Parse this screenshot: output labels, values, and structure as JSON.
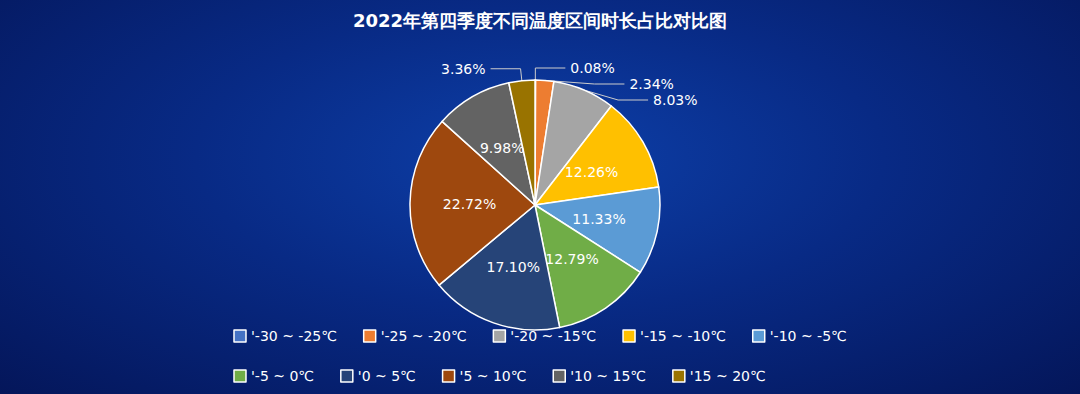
{
  "chart_data": {
    "type": "pie",
    "title": "2022年第四季度不同温度区间时长占比对比图",
    "categories": [
      "'-30 ~ -25℃",
      "'-25 ~ -20℃",
      "'-20 ~ -15℃",
      "'-15 ~ -10℃",
      "'-10 ~ -5℃",
      "'-5 ~ 0℃",
      "'0 ~ 5℃",
      "'5 ~ 10℃",
      "'10 ~ 15℃",
      "'15 ~ 20℃"
    ],
    "values": [
      0.08,
      2.34,
      8.03,
      12.26,
      11.33,
      12.79,
      17.1,
      22.72,
      9.98,
      3.36
    ],
    "value_labels": [
      "0.08%",
      "2.34%",
      "8.03%",
      "12.26%",
      "11.33%",
      "12.79%",
      "17.10%",
      "22.72%",
      "9.98%",
      "3.36%"
    ],
    "colors": [
      "#4472C4",
      "#ED7D31",
      "#A5A5A5",
      "#FFC000",
      "#5B9BD5",
      "#70AD47",
      "#264478",
      "#9E480E",
      "#636363",
      "#997300"
    ],
    "legend": "bottom",
    "data_labels": true
  }
}
